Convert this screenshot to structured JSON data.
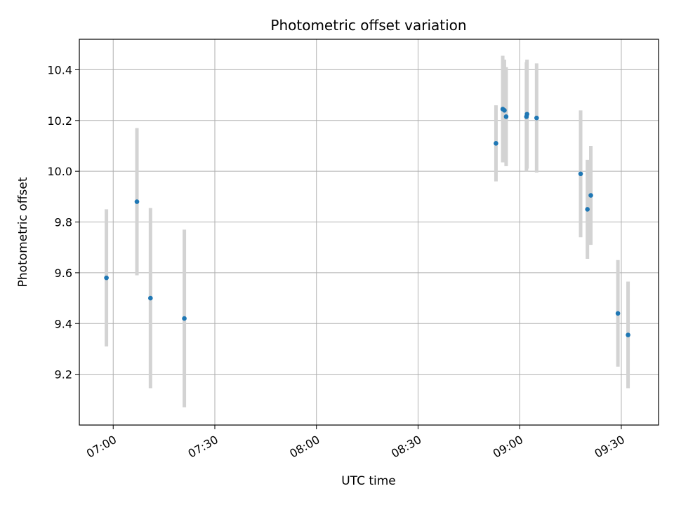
{
  "chart_data": {
    "type": "scatter",
    "title": "Photometric offset variation",
    "xlabel": "UTC time",
    "ylabel": "Photometric offset",
    "x_ticks": [
      "07:00",
      "07:30",
      "08:00",
      "08:30",
      "09:00",
      "09:30"
    ],
    "y_ticks": [
      "9.2",
      "9.4",
      "9.6",
      "9.8",
      "10.0",
      "10.2",
      "10.4"
    ],
    "xlim": [
      "06:50",
      "09:41"
    ],
    "ylim": [
      9.0,
      10.52
    ],
    "grid": true,
    "colors": {
      "point": "#1f77b4",
      "errorbar": "#d3d3d3",
      "grid": "#b0b0b0"
    },
    "points": [
      {
        "x": "06:58",
        "y": 9.58,
        "err": 0.27
      },
      {
        "x": "07:07",
        "y": 9.88,
        "err": 0.29
      },
      {
        "x": "07:11",
        "y": 9.5,
        "err": 0.355
      },
      {
        "x": "07:21",
        "y": 9.42,
        "err": 0.35
      },
      {
        "x": "08:53",
        "y": 10.11,
        "err": 0.15
      },
      {
        "x": "08:55",
        "y": 10.245,
        "err": 0.21
      },
      {
        "x": "08:55:30",
        "y": 10.24,
        "err": 0.2
      },
      {
        "x": "08:56",
        "y": 10.215,
        "err": 0.195
      },
      {
        "x": "09:02",
        "y": 10.215,
        "err": 0.215
      },
      {
        "x": "09:02:10",
        "y": 10.225,
        "err": 0.215
      },
      {
        "x": "09:05",
        "y": 10.21,
        "err": 0.215
      },
      {
        "x": "09:18",
        "y": 9.99,
        "err": 0.25
      },
      {
        "x": "09:20",
        "y": 9.85,
        "err": 0.195
      },
      {
        "x": "09:21",
        "y": 9.905,
        "err": 0.195
      },
      {
        "x": "09:29",
        "y": 9.44,
        "err": 0.21
      },
      {
        "x": "09:32",
        "y": 9.355,
        "err": 0.21
      }
    ]
  }
}
